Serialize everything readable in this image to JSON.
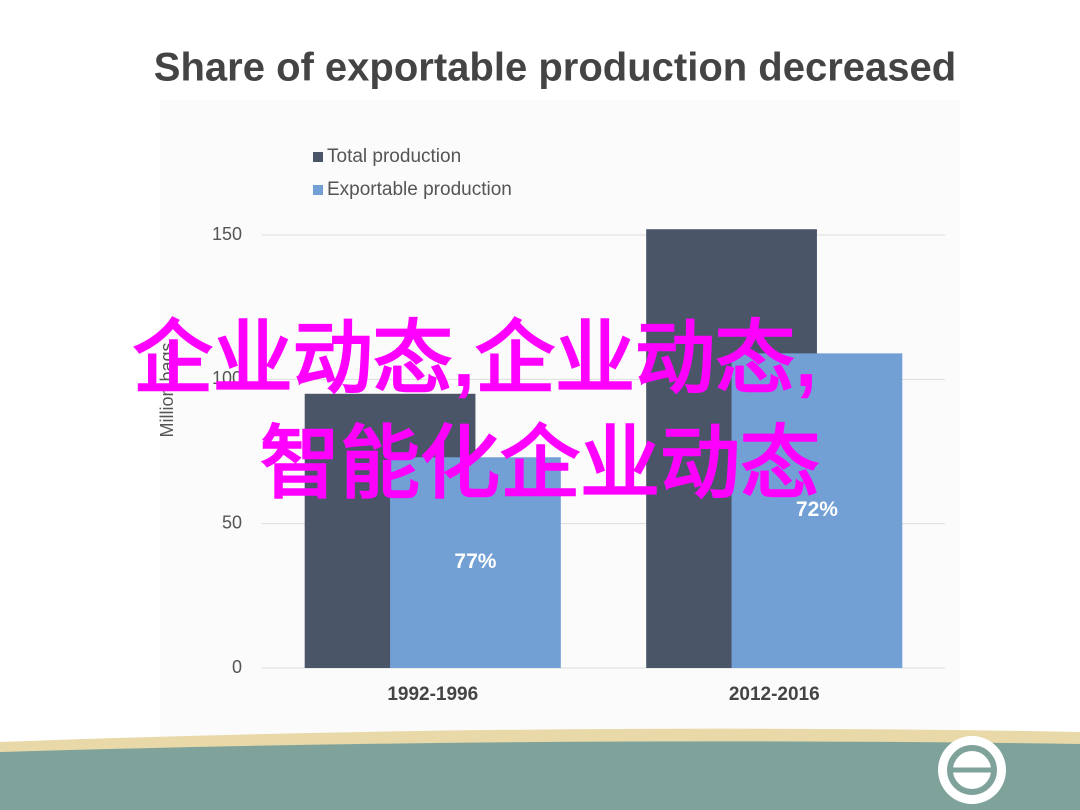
{
  "chart_data": {
    "type": "bar",
    "title": "Share of exportable production decreased",
    "y_label": "Million bags",
    "categories": [
      "1992-1996",
      "2012-2016"
    ],
    "series": [
      {
        "name": "Total production",
        "color": "#4a5568",
        "values": [
          95,
          152
        ]
      },
      {
        "name": "Exportable production",
        "color": "#729fd4",
        "values": [
          73,
          109
        ]
      }
    ],
    "share_labels": [
      "77%",
      "72%"
    ],
    "ylim": [
      0,
      150
    ],
    "yticks": [
      0,
      50,
      100,
      150
    ],
    "grid": true,
    "legend": "top-left"
  },
  "overlay_text": [
    "企业动态,企业动态,",
    "智能化企业动态"
  ]
}
